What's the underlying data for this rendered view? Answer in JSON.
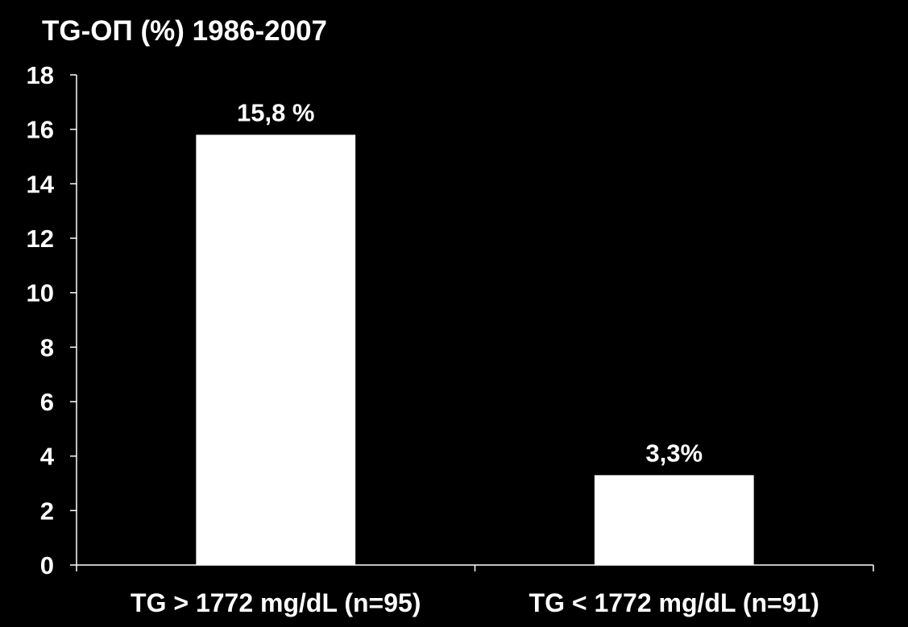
{
  "chart_data": {
    "type": "bar",
    "title": "TG-ΟΠ (%) 1986-2007",
    "categories": [
      "TG > 1772 mg/dL (n=95)",
      "TG < 1772 mg/dL (n=91)"
    ],
    "values": [
      15.8,
      3.3
    ],
    "data_labels": [
      "15,8 %",
      "3,3%"
    ],
    "ylim": [
      0,
      18
    ],
    "yticks": [
      "0",
      "2",
      "4",
      "6",
      "8",
      "10",
      "12",
      "14",
      "16",
      "18"
    ],
    "xlabel": "",
    "ylabel": "",
    "grid": false,
    "legend": "none",
    "colors": {
      "background": "#000000",
      "bar": "#ffffff",
      "axis": "#ffffff",
      "text": "#ffffff"
    }
  }
}
